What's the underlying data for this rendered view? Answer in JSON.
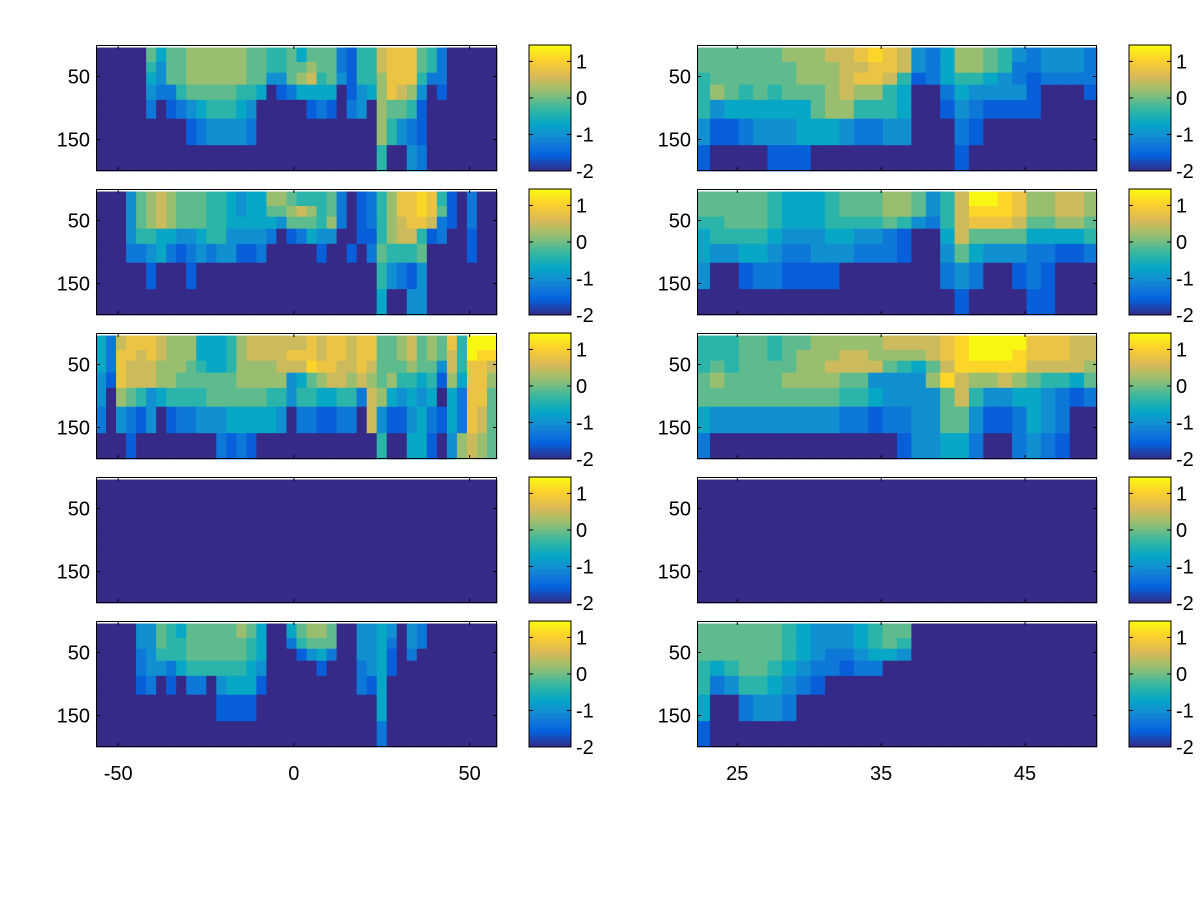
{
  "chart_data": {
    "type": "heatmap",
    "layout": "5 rows x 2 columns of heatmaps, each with its own colorbar",
    "clim": [
      -2,
      1.45
    ],
    "colorbar_ticks": [
      1,
      0,
      -1,
      -2
    ],
    "colorbar_tick_labels": [
      "1",
      "0",
      "-1",
      "-2"
    ],
    "colormap": "parula",
    "colormap_stops": [
      "#352a87",
      "#0363e1",
      "#1485d4",
      "#06a7c6",
      "#38b99e",
      "#92bf73",
      "#d9ba56",
      "#fcce2e",
      "#f9fb0e"
    ],
    "value_encoding": {
      "0": -2.0,
      "1": -1.6,
      "2": -1.3,
      "3": -1.0,
      "4": -0.7,
      "5": -0.4,
      "6": -0.1,
      "7": 0.2,
      "8": 0.5,
      "9": 0.8,
      "a": 1.1,
      "b": 1.4
    },
    "depth_edges": [
      4,
      27,
      44,
      63,
      87,
      117,
      159,
      200
    ],
    "ylim": [
      0,
      200
    ],
    "yticks": [
      50,
      150
    ],
    "ytick_labels": [
      "50",
      "150"
    ],
    "columns": [
      {
        "name": "left",
        "xlim": [
          -56.3,
          57.8
        ],
        "xticks": [
          -50,
          0,
          50
        ],
        "xtick_labels": [
          "-50",
          "0",
          "50"
        ],
        "panels": [
          {
            "rows": [
              "0000064667777776655646662155899965200000",
              "0000053667777776655667662155899965200000",
              "0000043667777776633678563155799952200000",
              "0000032256666655401244440134798730100000",
              "0000020123455543000001210230766510000000",
              "0000000001233332000000000000753210000000",
              "0000000000000000000000000000500320000000"
            ]
          },
          {
            "rows": [
              "00036787666554344776555620125799a9510200",
              "00036787666554344667875620125799a9610200",
              "0003678766655444443666572012578998210200",
              "0003554433455333320124330011578851200100",
              "0002234212323311200000100102655560000100",
              "0000010001000000000000000000532130000000",
              "0000000000000000000000000000400330000000"
            ]
          },
          {
            "rows": [
              "4289998777444578888889899899667867695bbb",
              "4299898777444578888999899899667867685baa",
              "429888777654457777888a998898666766385998",
              "3198887766666677777346788787675545174997",
              "3076534555566666655355445528743434042996",
              "2032130122333444443022112208311342142986",
              "0001000000002121000000000000500441037876"
            ]
          },
          {
            "rows": [
              "0000000000000000000000000000000000000000",
              "0000000000000000000000000000000000000000",
              "0000000000000000000000000000000000000000",
              "0000000000000000000000000000000000000000",
              "0000000000000000000000000000000000000000",
              "0000000000000000000000000000000000000000",
              "0000000000000000000000000000000000000000"
            ]
          },
          {
            "rows": [
              "0000336546666676400467760033430320000000",
              "0000336556666665400256660033420320000000",
              "0000235556666665400013420033410200000000",
              "0000233245555554300000100023410000000000",
              "0000120102203444100000000021400000000000",
              "0000000000001111000000000000400000000000",
              "0000000000000000000000000000200000000000"
            ]
          }
        ]
      },
      {
        "name": "right",
        "xlim": [
          22.2,
          50
        ],
        "xticks": [
          25,
          35,
          45
        ],
        "xtick_labels": [
          "25",
          "35",
          "45"
        ],
        "panels": [
          {
            "rows": [
              "666666777889a983247765323332",
              "6666666777889983247765223332",
              "5666666777899851245543212222",
              "5765656667877540024333310001",
              "5344444467755540013211110000",
              "3112333444322330002100000000",
              "1000011100000000001000000000"
            ]
          },
          {
            "rows": [
              "6666654445666776358bba977887",
              "6666654445666776358aaa977887",
              "5566654445555653258999866776",
              "4555543334433210048666644445",
              "4334432233322210036433322112",
              "3001221111000000023200121000",
              "0000000000000000001000011000"
            ]
          },
          {
            "rows": [
              "555665667777788889abbbb99988",
              "555665677788777789abbba99988",
              "565666677888865468aaaaa88887",
              "67666677776633337a8778765546",
              "6666666666554333368533443212",
              "4333333333221223366311243200",
              "2000000000000013344200232100"
            ]
          },
          {
            "rows": [
              "0000000000000000000000000000",
              "0000000000000000000000000000",
              "0000000000000000000000000000",
              "0000000000000000000000000000",
              "0000000000000000000000000000",
              "0000000000000000000000000000",
              "0000000000000000000000000000"
            ]
          },
          {
            "rows": [
              "6666665433345660000000000000",
              "6666665433345650000000000000",
              "6666665432234430000000000000",
              "5456654322122000000000000000",
              "5235543210000000000000000000",
              "4002332000000000000000000000",
              "1000000000000000000000000000"
            ]
          }
        ]
      }
    ]
  }
}
